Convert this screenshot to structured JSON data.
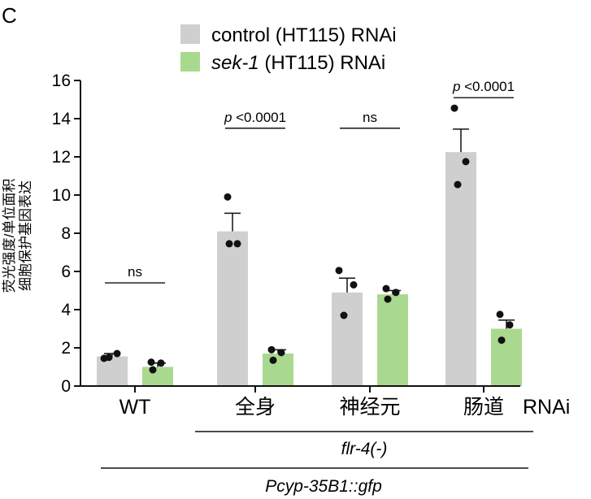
{
  "panel_label": "C",
  "legend": {
    "control": {
      "prefix": "control",
      "suffix": " (HT115) RNAi"
    },
    "sek1": {
      "prefix": "sek-1",
      "suffix": " (HT115) RNAi"
    }
  },
  "rnai_label": "RNAi",
  "ylabel": {
    "line1": "荧光强度/单位面积",
    "line2": "细胞保护基因表达"
  },
  "group_labels": {
    "flr4": "flr-4(-)",
    "reporter": "Pcyp-35B1::gfp"
  },
  "colors": {
    "control": "#cfcfcf",
    "sek1": "#a9d98e",
    "axis": "#111111",
    "point": "#111111"
  },
  "chart_data": {
    "type": "bar",
    "title": "",
    "xlabel": "RNAi",
    "ylabel": "荧光强度/单位面积 细胞保护基因表达",
    "ylim": [
      0,
      16
    ],
    "yticks": [
      0,
      2,
      4,
      6,
      8,
      10,
      12,
      14,
      16
    ],
    "categories": [
      "WT",
      "全身",
      "神经元",
      "肠道"
    ],
    "series": [
      {
        "name": "control (HT115) RNAi",
        "values": [
          1.55,
          8.1,
          4.9,
          12.25
        ],
        "errors": [
          0.15,
          0.95,
          0.75,
          1.2
        ],
        "points": [
          [
            1.45,
            1.7,
            1.5
          ],
          [
            9.9,
            7.45,
            7.45
          ],
          [
            6.05,
            5.3,
            3.7
          ],
          [
            14.55,
            11.75,
            10.55
          ]
        ]
      },
      {
        "name": "sek-1 (HT115) RNAi",
        "values": [
          1.0,
          1.7,
          4.8,
          3.0
        ],
        "errors": [
          0.2,
          0.2,
          0.2,
          0.45
        ],
        "points": [
          [
            1.25,
            1.2,
            0.85
          ],
          [
            1.9,
            1.75,
            1.35
          ],
          [
            5.1,
            4.9,
            4.55
          ],
          [
            3.75,
            3.2,
            2.4
          ]
        ]
      }
    ],
    "significance": [
      {
        "category": "WT",
        "label": "ns",
        "height": 5.4
      },
      {
        "category": "全身",
        "prefix": "p",
        "text": " <0.0001",
        "height": 13.5
      },
      {
        "category": "神经元",
        "label": "ns",
        "height": 13.5
      },
      {
        "category": "肠道",
        "prefix": "p",
        "text": " <0.0001",
        "height": 15.1
      }
    ]
  }
}
